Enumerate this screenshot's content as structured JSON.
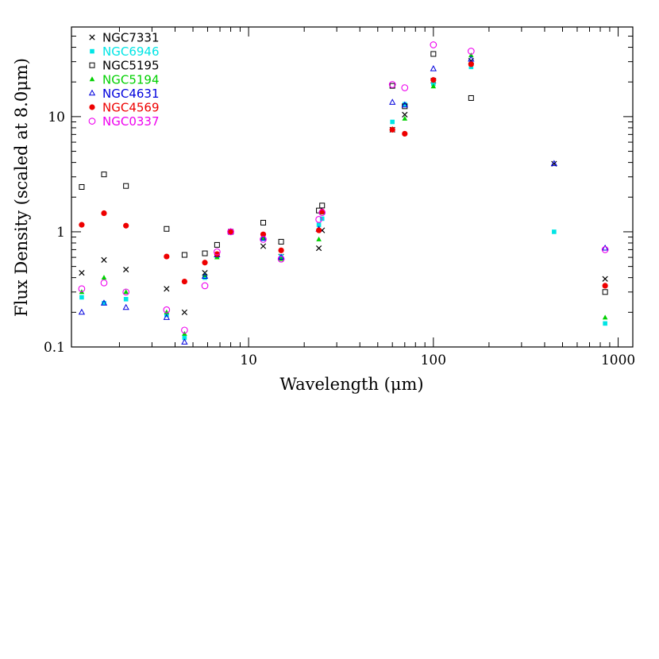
{
  "chart_data": {
    "type": "scatter",
    "title": "",
    "xlabel": "Wavelength (μm)",
    "ylabel": "Flux Density (scaled at 8.0μm)",
    "xscale": "log",
    "yscale": "log",
    "xlim": [
      1.1,
      1200
    ],
    "ylim": [
      0.1,
      60
    ],
    "x_ticklabels": [
      "10",
      "100",
      "1000"
    ],
    "y_ticklabels": [
      "0.1",
      "1",
      "10"
    ],
    "legend_position": "top-left",
    "series": [
      {
        "name": "NGC7331",
        "marker": "x",
        "color": "#000000",
        "points": [
          [
            1.25,
            0.44
          ],
          [
            1.65,
            0.57
          ],
          [
            2.17,
            0.47
          ],
          [
            3.6,
            0.32
          ],
          [
            4.5,
            0.2
          ],
          [
            5.8,
            0.44
          ],
          [
            8.0,
            1.0
          ],
          [
            12,
            0.75
          ],
          [
            15,
            0.61
          ],
          [
            24,
            0.72
          ],
          [
            25,
            1.03
          ],
          [
            60,
            7.7
          ],
          [
            70,
            10.4
          ],
          [
            100,
            20.5
          ],
          [
            160,
            30.5
          ],
          [
            450,
            3.9
          ],
          [
            850,
            0.39
          ]
        ]
      },
      {
        "name": "NGC6946",
        "marker": "square-filled",
        "color": "#00e5e5",
        "points": [
          [
            1.25,
            0.27
          ],
          [
            1.65,
            0.24
          ],
          [
            2.17,
            0.26
          ],
          [
            3.6,
            0.19
          ],
          [
            4.5,
            0.12
          ],
          [
            5.8,
            0.4
          ],
          [
            6.75,
            0.62
          ],
          [
            8.0,
            1.0
          ],
          [
            12,
            0.87
          ],
          [
            15,
            0.61
          ],
          [
            24,
            1.15
          ],
          [
            25,
            1.3
          ],
          [
            60,
            9.0
          ],
          [
            70,
            12.8
          ],
          [
            100,
            19.3
          ],
          [
            160,
            27.0
          ],
          [
            450,
            1.0
          ],
          [
            850,
            0.16
          ]
        ]
      },
      {
        "name": "NGC5195",
        "marker": "square-open",
        "color": "#000000",
        "points": [
          [
            1.25,
            2.45
          ],
          [
            1.65,
            3.15
          ],
          [
            2.17,
            2.5
          ],
          [
            3.6,
            1.06
          ],
          [
            4.5,
            0.63
          ],
          [
            5.8,
            0.65
          ],
          [
            6.75,
            0.77
          ],
          [
            8.0,
            1.0
          ],
          [
            12,
            1.2
          ],
          [
            15,
            0.82
          ],
          [
            24,
            1.53
          ],
          [
            25,
            1.69
          ],
          [
            60,
            18.5
          ],
          [
            70,
            12.3
          ],
          [
            100,
            35.0
          ],
          [
            160,
            14.5
          ],
          [
            850,
            0.3
          ]
        ]
      },
      {
        "name": "NGC5194",
        "marker": "triangle-filled",
        "color": "#00d000",
        "points": [
          [
            1.25,
            0.3
          ],
          [
            1.65,
            0.4
          ],
          [
            2.17,
            0.3
          ],
          [
            3.6,
            0.2
          ],
          [
            4.5,
            0.13
          ],
          [
            5.8,
            0.42
          ],
          [
            6.75,
            0.6
          ],
          [
            8.0,
            1.0
          ],
          [
            12,
            0.88
          ],
          [
            15,
            0.58
          ],
          [
            24,
            0.86
          ],
          [
            25,
            1.47
          ],
          [
            60,
            7.8
          ],
          [
            70,
            9.6
          ],
          [
            100,
            18.3
          ],
          [
            160,
            34.0
          ],
          [
            850,
            0.18
          ]
        ]
      },
      {
        "name": "NGC4631",
        "marker": "triangle-open",
        "color": "#0000dd",
        "points": [
          [
            1.25,
            0.2
          ],
          [
            1.65,
            0.24
          ],
          [
            2.17,
            0.22
          ],
          [
            3.6,
            0.18
          ],
          [
            4.5,
            0.11
          ],
          [
            5.8,
            0.41
          ],
          [
            6.75,
            0.63
          ],
          [
            8.0,
            1.0
          ],
          [
            12,
            0.88
          ],
          [
            15,
            0.6
          ],
          [
            24,
            1.05
          ],
          [
            25,
            1.5
          ],
          [
            60,
            13.3
          ],
          [
            70,
            12.6
          ],
          [
            100,
            26.0
          ],
          [
            160,
            31.5
          ],
          [
            450,
            3.9
          ],
          [
            850,
            0.72
          ]
        ]
      },
      {
        "name": "NGC4569",
        "marker": "circle-filled",
        "color": "#ee0000",
        "points": [
          [
            1.25,
            1.15
          ],
          [
            1.65,
            1.45
          ],
          [
            2.17,
            1.13
          ],
          [
            3.6,
            0.61
          ],
          [
            4.5,
            0.37
          ],
          [
            5.8,
            0.54
          ],
          [
            6.75,
            0.64
          ],
          [
            8.0,
            1.0
          ],
          [
            12,
            0.95
          ],
          [
            15,
            0.69
          ],
          [
            24,
            1.03
          ],
          [
            25,
            1.5
          ],
          [
            60,
            7.7
          ],
          [
            70,
            7.1
          ],
          [
            100,
            20.8
          ],
          [
            160,
            28.5
          ],
          [
            850,
            0.34
          ]
        ]
      },
      {
        "name": "NGC0337",
        "marker": "circle-open",
        "color": "#ee00ee",
        "points": [
          [
            1.25,
            0.32
          ],
          [
            1.65,
            0.36
          ],
          [
            2.17,
            0.3
          ],
          [
            3.6,
            0.21
          ],
          [
            4.5,
            0.14
          ],
          [
            5.8,
            0.34
          ],
          [
            6.75,
            0.67
          ],
          [
            8.0,
            1.0
          ],
          [
            12,
            0.86
          ],
          [
            15,
            0.58
          ],
          [
            24,
            1.28
          ],
          [
            25,
            1.47
          ],
          [
            60,
            19.0
          ],
          [
            70,
            17.8
          ],
          [
            100,
            42.0
          ],
          [
            160,
            37.0
          ],
          [
            850,
            0.7
          ]
        ]
      }
    ]
  }
}
